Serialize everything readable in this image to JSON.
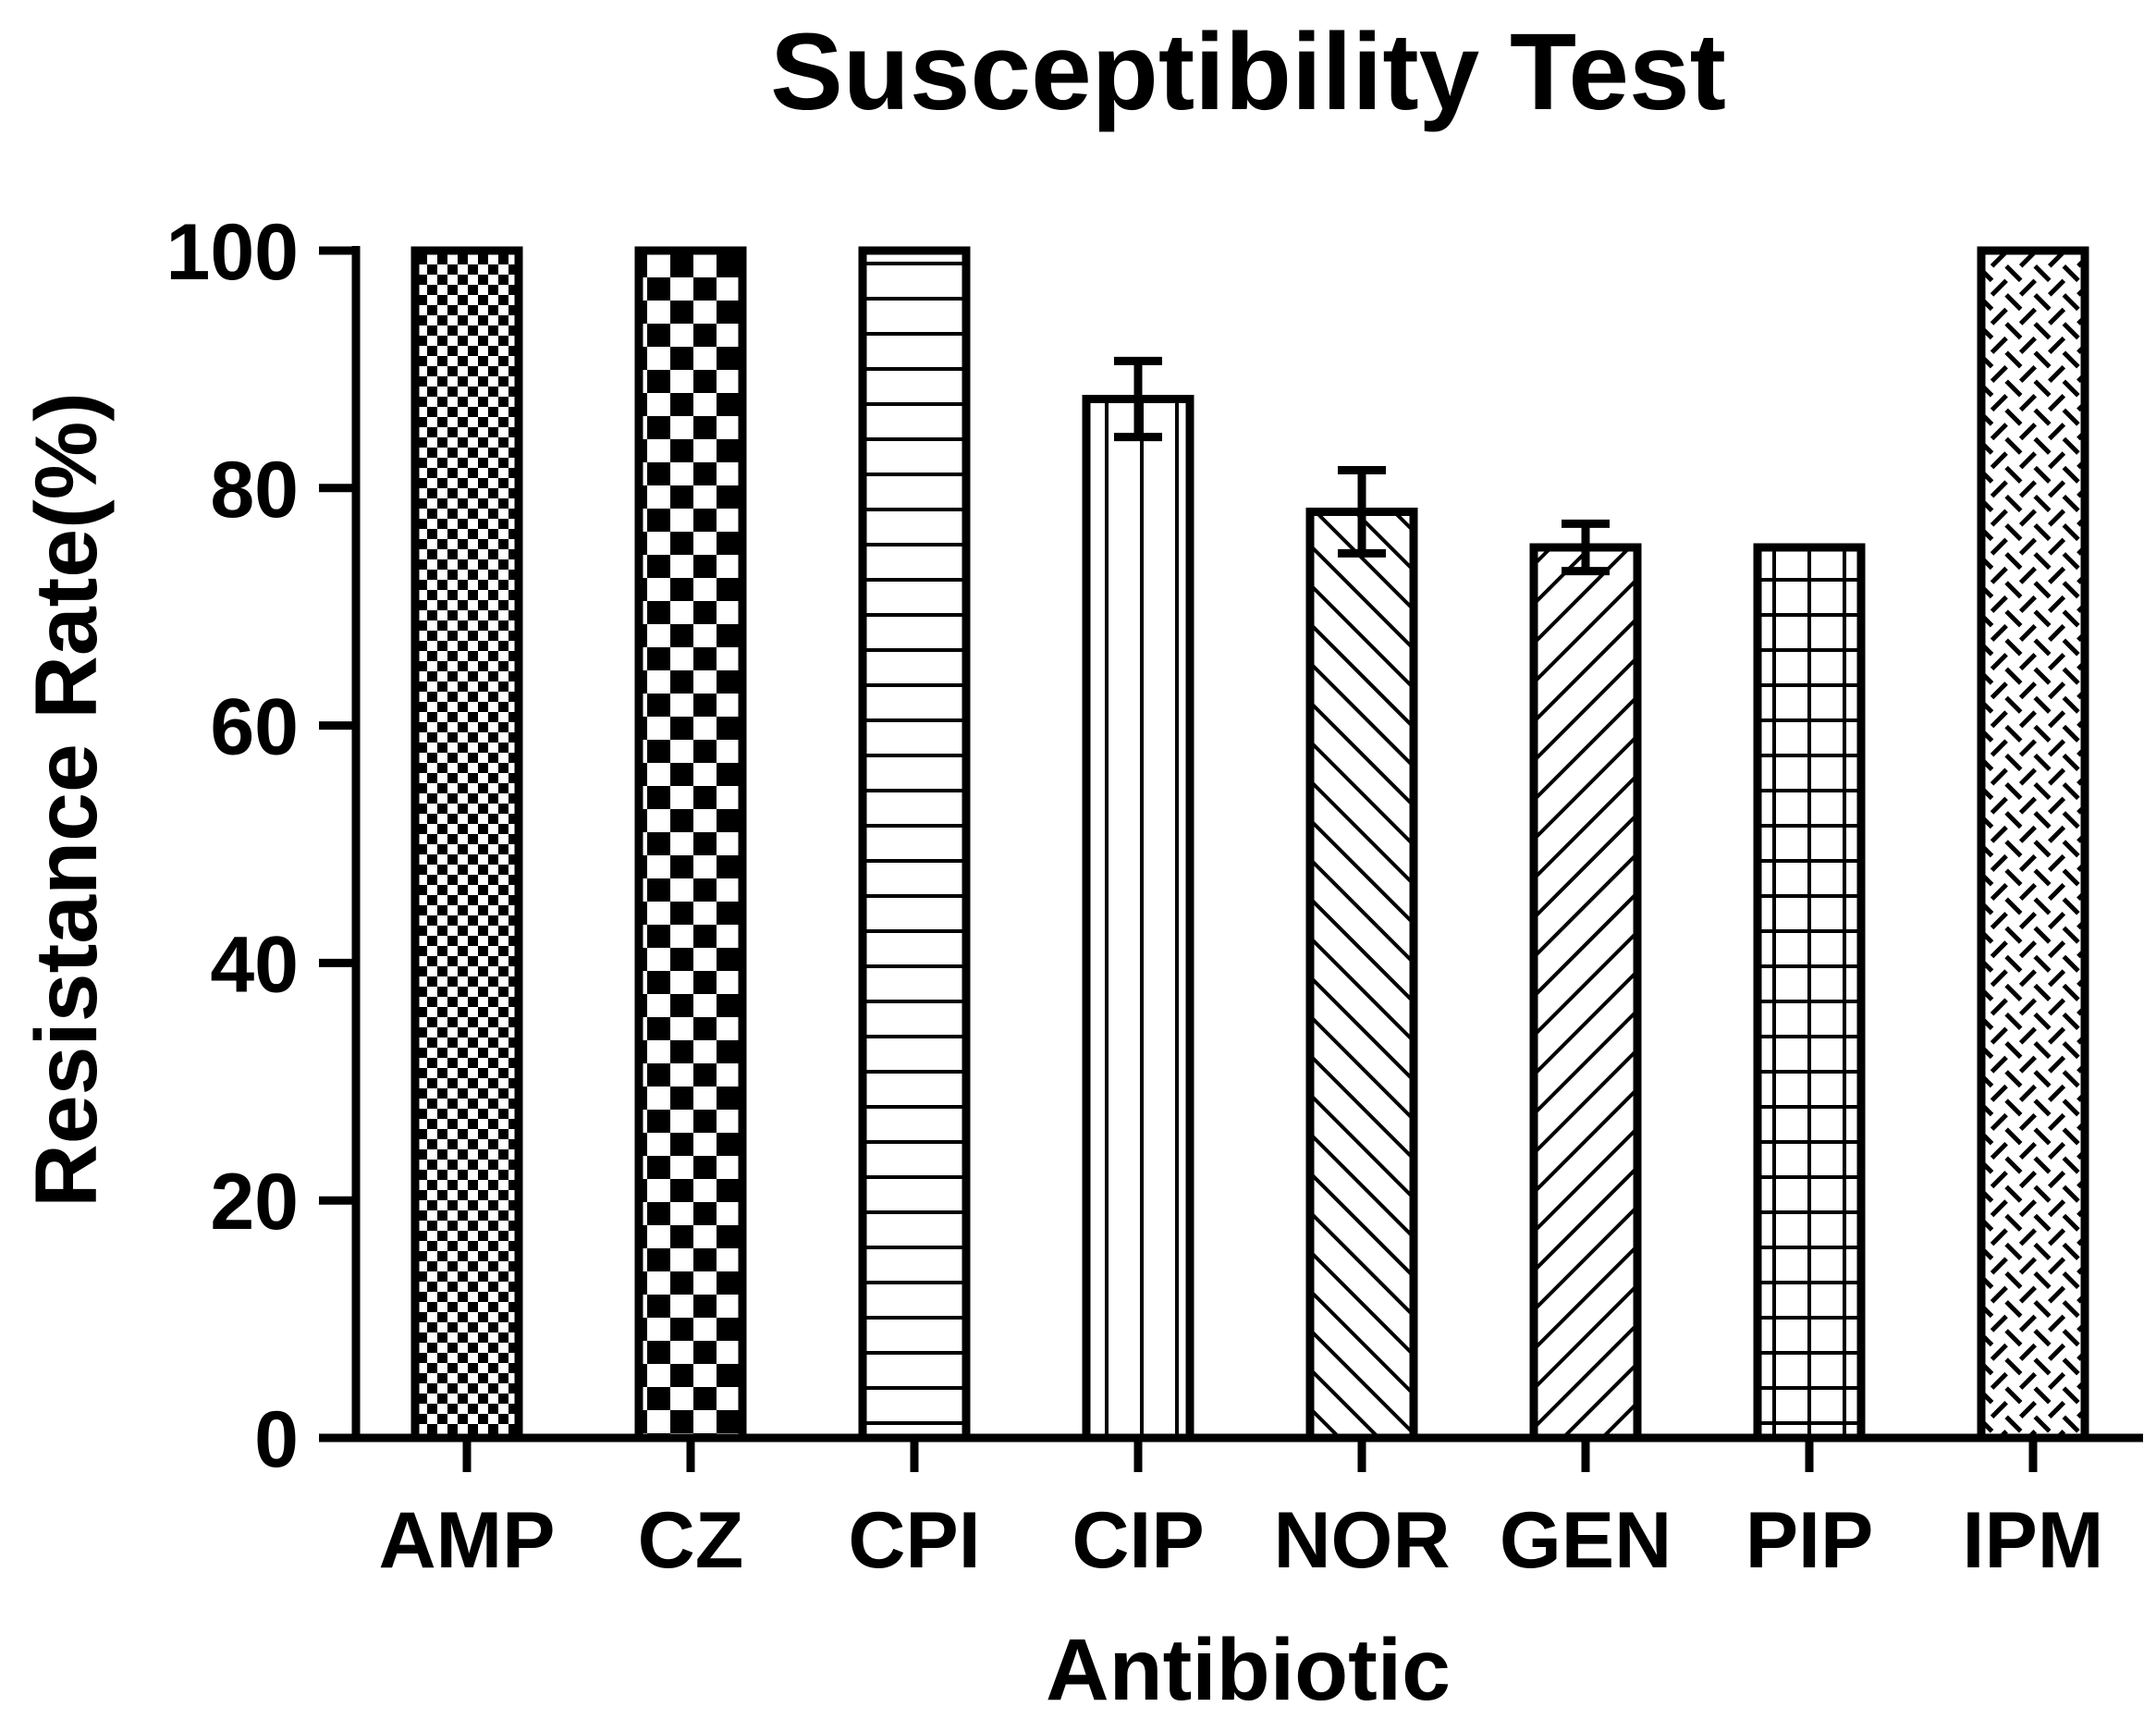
{
  "chart_data": {
    "type": "bar",
    "title": "Susceptibility Test",
    "xlabel": "Antibiotic",
    "ylabel": "Resistance Rate(%)",
    "ylim": [
      0,
      100
    ],
    "yticks": [
      0,
      20,
      40,
      60,
      80,
      100
    ],
    "categories": [
      "AMP",
      "CZ",
      "CPI",
      "CIP",
      "NOR",
      "GEN",
      "PIP",
      "IPM"
    ],
    "values": [
      100,
      100,
      100,
      87.5,
      78,
      75,
      75,
      100
    ],
    "errors": [
      0,
      0,
      0,
      3.2,
      3.5,
      2.0,
      0,
      0
    ],
    "patterns": [
      "fine-checker",
      "checker",
      "horizontal-lines",
      "vertical-lines",
      "diagonal-up",
      "diagonal-down",
      "grid",
      "diagonal-weave"
    ],
    "color": "#000000",
    "background": "#ffffff",
    "grid": false,
    "legend": "none"
  }
}
